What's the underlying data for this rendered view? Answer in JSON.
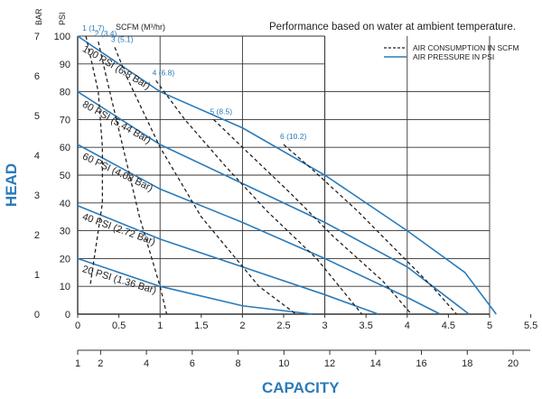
{
  "chart_data": {
    "type": "line",
    "title": "",
    "note": "Performance based on water at ambient temperature.",
    "xlabel": "CAPACITY",
    "ylabel": "HEAD",
    "x_gpm": {
      "ticks": [
        "0",
        "0.5",
        "1",
        "1.5",
        "2",
        "2.5",
        "3",
        "3.5",
        "4",
        "4.5",
        "5",
        "5.5"
      ],
      "values": [
        0,
        0.5,
        1,
        1.5,
        2,
        2.5,
        3,
        3.5,
        4,
        4.5,
        5,
        5.5
      ],
      "lim": [
        0,
        5.5
      ]
    },
    "x_lpm": {
      "ticks": [
        "1",
        "2",
        "4",
        "6",
        "8",
        "10",
        "12",
        "14",
        "16",
        "18",
        "20"
      ],
      "values": [
        1,
        2,
        4,
        6,
        8,
        10,
        12,
        14,
        16,
        18,
        20
      ]
    },
    "y_bar": {
      "unit": "BAR",
      "ticks": [
        "0",
        "1",
        "2",
        "3",
        "4",
        "5",
        "6",
        "7"
      ],
      "values": [
        0,
        1,
        2,
        3,
        4,
        5,
        6,
        7
      ]
    },
    "y_psi": {
      "unit": "PSI",
      "ticks": [
        "0",
        "10",
        "20",
        "30",
        "40",
        "50",
        "60",
        "70",
        "80",
        "90",
        "100"
      ],
      "values": [
        0,
        10,
        20,
        30,
        40,
        50,
        60,
        70,
        80,
        90,
        100
      ],
      "lim": [
        0,
        100
      ]
    },
    "scfm_header": "SCFM (M³/hr)",
    "legend": {
      "dashed": "AIR CONSUMPTION IN SCFM",
      "solid": "AIR PRESSURE IN PSI"
    },
    "pressure_series": [
      {
        "label": "100 PSI (6.8 Bar)",
        "points": [
          [
            0,
            100
          ],
          [
            1,
            80
          ],
          [
            2,
            67
          ],
          [
            3,
            50
          ],
          [
            4,
            30
          ],
          [
            4.7,
            15
          ],
          [
            5.08,
            0
          ]
        ]
      },
      {
        "label": "80 PSI (5.44 Bar)",
        "points": [
          [
            0,
            80
          ],
          [
            1,
            61
          ],
          [
            2,
            47
          ],
          [
            3,
            33
          ],
          [
            4,
            17
          ],
          [
            4.75,
            0
          ]
        ]
      },
      {
        "label": "60 PSI (4.08 Bar)",
        "points": [
          [
            0,
            61
          ],
          [
            1,
            45
          ],
          [
            2,
            33
          ],
          [
            3,
            20
          ],
          [
            4,
            6
          ],
          [
            4.4,
            0
          ]
        ]
      },
      {
        "label": "40 PSI (2.72 Bar)",
        "points": [
          [
            0,
            39
          ],
          [
            1,
            27
          ],
          [
            2,
            17
          ],
          [
            3,
            7
          ],
          [
            3.65,
            0
          ]
        ]
      },
      {
        "label": "20 PSI (1.36 Bar)",
        "points": [
          [
            0,
            20
          ],
          [
            1,
            10
          ],
          [
            2,
            3
          ],
          [
            2.85,
            0
          ]
        ]
      }
    ],
    "air_series": [
      {
        "label": "1 (1.7)",
        "points": [
          [
            0.1,
            100
          ],
          [
            0.25,
            80
          ],
          [
            0.3,
            60
          ],
          [
            0.3,
            40
          ],
          [
            0.2,
            20
          ],
          [
            0.15,
            10
          ]
        ]
      },
      {
        "label": "2 (3.4)",
        "points": [
          [
            0.25,
            98
          ],
          [
            0.35,
            85
          ],
          [
            0.55,
            60
          ],
          [
            0.75,
            35
          ],
          [
            1.0,
            10
          ],
          [
            1.08,
            0
          ]
        ]
      },
      {
        "label": "3 (5.1)",
        "points": [
          [
            0.45,
            96
          ],
          [
            0.6,
            85
          ],
          [
            1.0,
            60
          ],
          [
            1.5,
            35
          ],
          [
            2.2,
            10
          ],
          [
            2.65,
            0
          ]
        ]
      },
      {
        "label": "4 (6.8)",
        "points": [
          [
            0.95,
            84
          ],
          [
            1.3,
            70
          ],
          [
            1.8,
            53
          ],
          [
            2.3,
            37
          ],
          [
            2.9,
            20
          ],
          [
            3.45,
            0
          ]
        ]
      },
      {
        "label": "5 (8.5)",
        "points": [
          [
            1.65,
            70
          ],
          [
            2.0,
            60
          ],
          [
            2.6,
            43
          ],
          [
            3.1,
            28
          ],
          [
            3.7,
            12
          ],
          [
            4.05,
            0
          ]
        ]
      },
      {
        "label": "6 (10.2)",
        "points": [
          [
            2.5,
            61
          ],
          [
            2.85,
            52
          ],
          [
            3.4,
            37
          ],
          [
            3.9,
            22
          ],
          [
            4.3,
            10
          ],
          [
            4.6,
            0
          ]
        ]
      }
    ]
  }
}
